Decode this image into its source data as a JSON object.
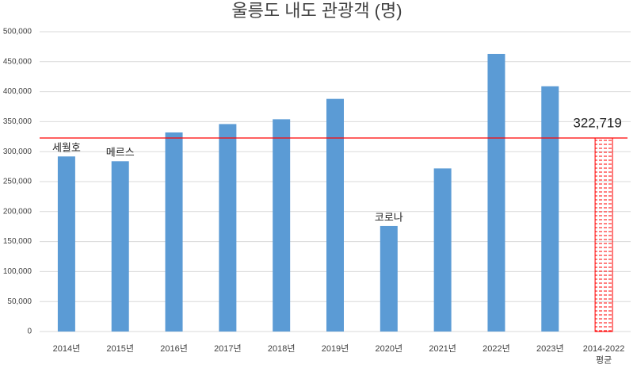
{
  "chart_data": {
    "type": "bar",
    "title": "울릉도 내도 관광객 (명)",
    "categories": [
      "2014년",
      "2015년",
      "2016년",
      "2017년",
      "2018년",
      "2019년",
      "2020년",
      "2021년",
      "2022년",
      "2023년",
      "2014-2022\n평균"
    ],
    "values": [
      292000,
      284000,
      332000,
      346000,
      354000,
      388000,
      176000,
      272000,
      463000,
      409000,
      322719
    ],
    "value_labels": [
      null,
      null,
      null,
      null,
      null,
      null,
      null,
      null,
      null,
      null,
      "322,719"
    ],
    "annotations": [
      "세월호",
      "메르스",
      null,
      null,
      null,
      null,
      "코로나",
      null,
      null,
      null,
      null
    ],
    "colors": [
      "#5b9bd5",
      "#5b9bd5",
      "#5b9bd5",
      "#5b9bd5",
      "#5b9bd5",
      "#5b9bd5",
      "#5b9bd5",
      "#5b9bd5",
      "#5b9bd5",
      "#5b9bd5",
      "#ff0000"
    ],
    "patterns": [
      "solid",
      "solid",
      "solid",
      "solid",
      "solid",
      "solid",
      "solid",
      "solid",
      "solid",
      "solid",
      "hatch"
    ],
    "reference_line": {
      "value": 322719,
      "color": "#ff0000"
    },
    "ylim": [
      0,
      500000
    ],
    "yticks": [
      0,
      {
        "value": 50000,
        "label": "50,000"
      },
      {
        "value": 100000,
        "label": "100,000"
      },
      {
        "value": 150000,
        "label": "150,000"
      },
      {
        "value": 200000,
        "label": "200,000"
      },
      {
        "value": 250000,
        "label": "250,000"
      },
      {
        "value": 300000,
        "label": "300,000"
      },
      {
        "value": 350000,
        "label": "350,000"
      },
      {
        "value": 400000,
        "label": "400,000"
      },
      {
        "value": 450000,
        "label": "450,000"
      },
      {
        "value": 500000,
        "label": "500,000"
      }
    ],
    "grid": true
  }
}
